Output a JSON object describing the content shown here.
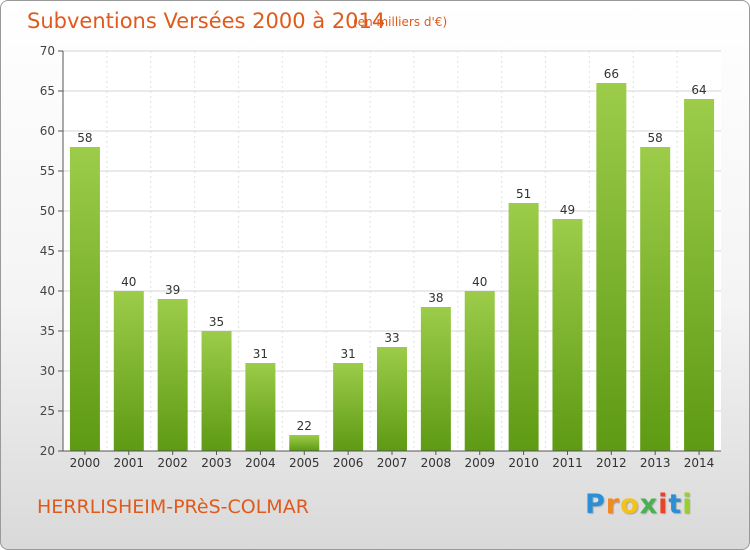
{
  "header": {
    "title": "Subventions Versées 2000 à 2014",
    "unit": "(en milliers d'€)"
  },
  "footer": {
    "commune": "HERRLISHEIM-PRèS-COLMAR"
  },
  "logo": {
    "letters": [
      "P",
      "r",
      "o",
      "x",
      "i",
      "t",
      "i"
    ],
    "colors": [
      "#2b8fd6",
      "#f08a24",
      "#f3c31a",
      "#4caf50",
      "#e8432a",
      "#2b8fd6",
      "#9acd32"
    ]
  },
  "chart_data": {
    "type": "bar",
    "title": "Subventions Versées 2000 à 2014",
    "xlabel": "",
    "ylabel": "",
    "categories": [
      "2000",
      "2001",
      "2002",
      "2003",
      "2004",
      "2005",
      "2006",
      "2007",
      "2008",
      "2009",
      "2010",
      "2011",
      "2012",
      "2013",
      "2014"
    ],
    "values": [
      58,
      40,
      39,
      35,
      31,
      22,
      31,
      33,
      38,
      40,
      51,
      49,
      66,
      58,
      64
    ],
    "ylim": [
      20,
      70
    ],
    "yticks": [
      20,
      25,
      30,
      35,
      40,
      45,
      50,
      55,
      60,
      65,
      70
    ],
    "grid": true,
    "bar_color_top": "#9ccc4a",
    "bar_color_bottom": "#5e9a14"
  }
}
